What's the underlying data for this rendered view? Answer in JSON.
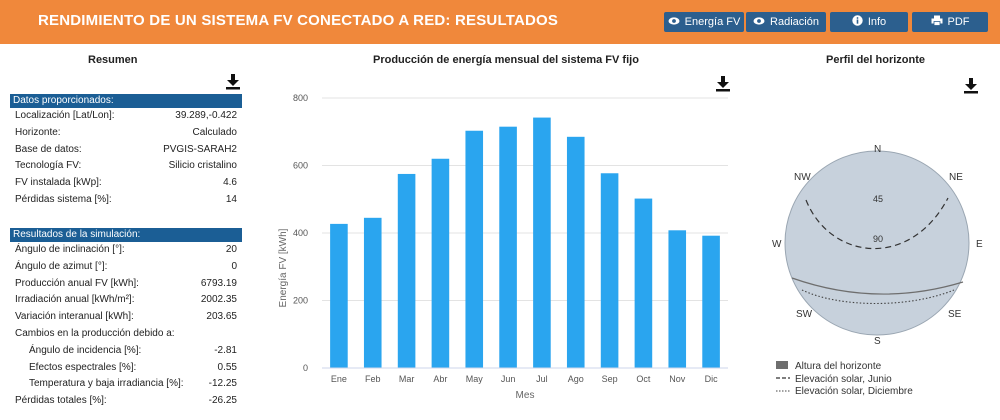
{
  "header": {
    "title": "RENDIMIENTO DE UN SISTEMA FV CONECTADO A RED: RESULTADOS",
    "buttons": {
      "energia": "Energía FV",
      "radiacion": "Radiación",
      "info": "Info",
      "pdf": "PDF"
    }
  },
  "summary": {
    "title": "Resumen",
    "input_section": "Datos proporcionados:",
    "input_rows": [
      {
        "label": "Localización [Lat/Lon]:",
        "value": "39.289,-0.422"
      },
      {
        "label": "Horizonte:",
        "value": "Calculado"
      },
      {
        "label": "Base de datos:",
        "value": "PVGIS-SARAH2"
      },
      {
        "label": "Tecnología FV:",
        "value": "Silicio cristalino"
      },
      {
        "label": "FV instalada [kWp]:",
        "value": "4.6"
      },
      {
        "label": "Pérdidas sistema [%]:",
        "value": "14"
      }
    ],
    "sim_section": "Resultados de la simulación:",
    "sim_rows": [
      {
        "label": "Ángulo de inclinación [°]:",
        "value": "20"
      },
      {
        "label": "Ángulo de azimut [°]:",
        "value": "0"
      },
      {
        "label": "Producción anual FV [kWh]:",
        "value": "6793.19"
      },
      {
        "label": "Irradiación anual [kWh/m²]:",
        "value": "2002.35"
      },
      {
        "label": "Variación interanual [kWh]:",
        "value": "203.65"
      },
      {
        "label": "Cambios en la producción debido a:",
        "value": ""
      },
      {
        "label": "Ángulo de incidencia [%]:",
        "value": "-2.81",
        "indent": true
      },
      {
        "label": "Efectos espectrales [%]:",
        "value": "0.55",
        "indent": true
      },
      {
        "label": "Temperatura y baja irradiancia [%]:",
        "value": "-12.25",
        "indent": true
      },
      {
        "label": "Pérdidas totales [%]:",
        "value": "-26.25"
      }
    ]
  },
  "chart_data": {
    "type": "bar",
    "title": "Producción de energía mensual del sistema FV fijo",
    "xlabel": "Mes",
    "ylabel": "Energía FV [kWh]",
    "ylim": [
      0,
      800
    ],
    "yticks": [
      0,
      200,
      400,
      600,
      800
    ],
    "grid": true,
    "color": "#2aa5ef",
    "categories": [
      "Ene",
      "Feb",
      "Mar",
      "Abr",
      "May",
      "Jun",
      "Jul",
      "Ago",
      "Sep",
      "Oct",
      "Nov",
      "Dic"
    ],
    "values": [
      427,
      445,
      575,
      620,
      703,
      715,
      742,
      685,
      577,
      502,
      408,
      392
    ]
  },
  "horizon": {
    "title": "Perfil del horizonte",
    "compass": {
      "n": "N",
      "ne": "NE",
      "e": "E",
      "se": "SE",
      "s": "S",
      "sw": "SW",
      "w": "W",
      "nw": "NW"
    },
    "rings": {
      "r45": "45",
      "r90": "90"
    },
    "legend": [
      {
        "label": "Altura del horizonte",
        "style": "box"
      },
      {
        "label": "Elevación solar, Junio",
        "style": "dash"
      },
      {
        "label": "Elevación solar, Diciembre",
        "style": "dot"
      }
    ],
    "colors": {
      "disk": "#c7d1dc",
      "horizon": "#6e6e6e"
    }
  }
}
